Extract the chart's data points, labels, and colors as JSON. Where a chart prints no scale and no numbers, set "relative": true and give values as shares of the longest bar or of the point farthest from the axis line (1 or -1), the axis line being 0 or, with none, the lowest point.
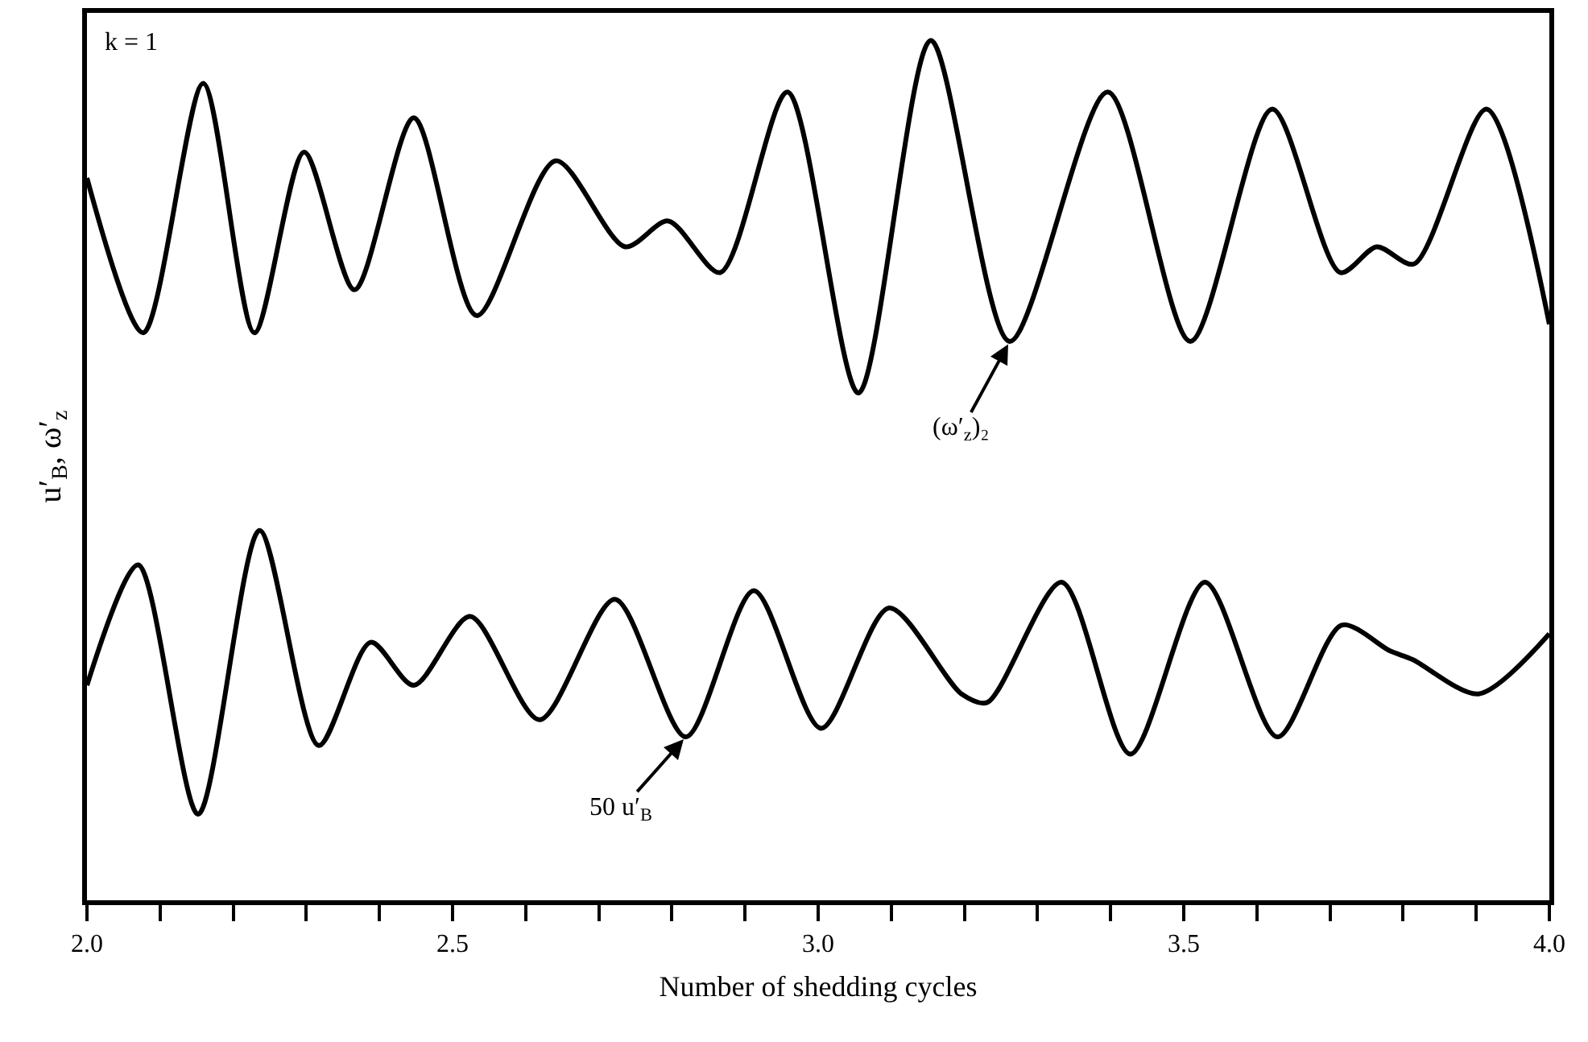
{
  "chart_data": {
    "type": "line",
    "relative": true,
    "xlabel": "Number of shedding cycles",
    "ylabel": "u′$_{B}$, ω′$_{z}$",
    "xlim": [
      2,
      4
    ],
    "xticks": [
      {
        "value": 2,
        "label": "2.0"
      },
      {
        "value": 2.1,
        "label": null
      },
      {
        "value": 2.2,
        "label": null
      },
      {
        "value": 2.3,
        "label": null
      },
      {
        "value": 2.4,
        "label": null
      },
      {
        "value": 2.5,
        "label": "2.5"
      },
      {
        "value": 2.6,
        "label": null
      },
      {
        "value": 2.7,
        "label": null
      },
      {
        "value": 2.8,
        "label": null
      },
      {
        "value": 2.9,
        "label": null
      },
      {
        "value": 3,
        "label": "3.0"
      },
      {
        "value": 3.1,
        "label": null
      },
      {
        "value": 3.2,
        "label": null
      },
      {
        "value": 3.3,
        "label": null
      },
      {
        "value": 3.4,
        "label": null
      },
      {
        "value": 3.5,
        "label": "3.5"
      },
      {
        "value": 3.6,
        "label": null
      },
      {
        "value": 3.7,
        "label": null
      },
      {
        "value": 3.8,
        "label": null
      },
      {
        "value": 3.9,
        "label": null
      },
      {
        "value": 4,
        "label": "4.0"
      }
    ],
    "series": [
      {
        "color": "#000000",
        "x": [
          2.0,
          2.077,
          2.159,
          2.229,
          2.297,
          2.366,
          2.447,
          2.533,
          2.641,
          2.736,
          2.795,
          2.866,
          2.958,
          3.055,
          3.154,
          3.262,
          3.396,
          3.509,
          3.621,
          3.714,
          3.764,
          3.815,
          3.914,
          4.0
        ],
        "values": [
          0.84,
          0.66,
          0.95,
          0.66,
          0.87,
          0.71,
          0.91,
          0.68,
          0.86,
          0.76,
          0.79,
          0.73,
          0.94,
          0.59,
          1.0,
          0.65,
          0.94,
          0.65,
          0.92,
          0.73,
          0.76,
          0.74,
          0.92,
          0.67
        ]
      },
      {
        "color": "#000000",
        "x": [
          2.0,
          2.07,
          2.152,
          2.236,
          2.317,
          2.388,
          2.447,
          2.524,
          2.619,
          2.722,
          2.819,
          2.912,
          3.004,
          3.097,
          3.196,
          3.231,
          3.333,
          3.427,
          3.529,
          3.628,
          3.716,
          3.782,
          3.813,
          3.903,
          4.0
        ],
        "values": [
          0.25,
          0.39,
          0.1,
          0.43,
          0.18,
          0.3,
          0.25,
          0.33,
          0.21,
          0.35,
          0.19,
          0.36,
          0.2,
          0.34,
          0.24,
          0.23,
          0.37,
          0.17,
          0.37,
          0.19,
          0.32,
          0.29,
          0.28,
          0.24,
          0.31
        ]
      }
    ],
    "annotations": [
      "k = 1",
      {
        "text": "(ω′$_{z}$)₂",
        "x": 3.262,
        "y": 0.65
      },
      {
        "text": "50 u′$_{B}$",
        "x": 2.819,
        "y": 0.19
      }
    ],
    "grid": false,
    "marker": "none",
    "line_style": "solid"
  }
}
